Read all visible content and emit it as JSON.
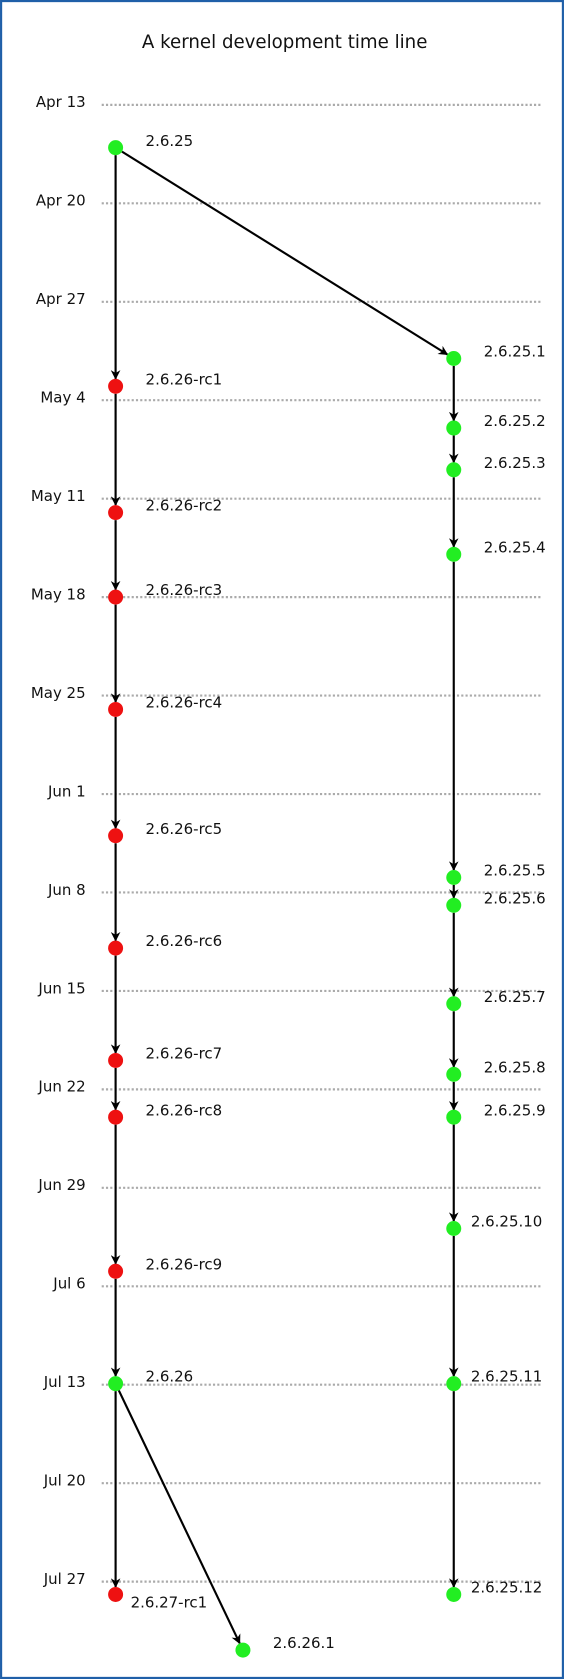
{
  "title": "A kernel development time line",
  "dates": [
    "Apr 13",
    "Apr 20",
    "Apr 27",
    "May 4",
    "May 11",
    "May 18",
    "May 25",
    "Jun 1",
    "Jun 8",
    "Jun 15",
    "Jun 22",
    "Jun 29",
    "Jul 6",
    "Jul 13",
    "Jul 20",
    "Jul 27"
  ],
  "nodes": [
    {
      "label": "2.6.25",
      "color": "#22ee22"
    },
    {
      "label": "2.6.26-rc1",
      "color": "#ee1111"
    },
    {
      "label": "2.6.26-rc2",
      "color": "#ee1111"
    },
    {
      "label": "2.6.26-rc3",
      "color": "#ee1111"
    },
    {
      "label": "2.6.26-rc4",
      "color": "#ee1111"
    },
    {
      "label": "2.6.26-rc5",
      "color": "#ee1111"
    },
    {
      "label": "2.6.26-rc6",
      "color": "#ee1111"
    },
    {
      "label": "2.6.26-rc7",
      "color": "#ee1111"
    },
    {
      "label": "2.6.26-rc8",
      "color": "#ee1111"
    },
    {
      "label": "2.6.26-rc9",
      "color": "#ee1111"
    },
    {
      "label": "2.6.26",
      "color": "#22ee22"
    },
    {
      "label": "2.6.27-rc1",
      "color": "#ee1111"
    },
    {
      "label": "2.6.26.1",
      "color": "#22ee22"
    },
    {
      "label": "2.6.25.1",
      "color": "#22ee22"
    },
    {
      "label": "2.6.25.2",
      "color": "#22ee22"
    },
    {
      "label": "2.6.25.3",
      "color": "#22ee22"
    },
    {
      "label": "2.6.25.4",
      "color": "#22ee22"
    },
    {
      "label": "2.6.25.5",
      "color": "#22ee22"
    },
    {
      "label": "2.6.25.6",
      "color": "#22ee22"
    },
    {
      "label": "2.6.25.7",
      "color": "#22ee22"
    },
    {
      "label": "2.6.25.8",
      "color": "#22ee22"
    },
    {
      "label": "2.6.25.9",
      "color": "#22ee22"
    },
    {
      "label": "2.6.25.10",
      "color": "#22ee22"
    },
    {
      "label": "2.6.25.11",
      "color": "#22ee22"
    },
    {
      "label": "2.6.25.12",
      "color": "#22ee22"
    }
  ]
}
